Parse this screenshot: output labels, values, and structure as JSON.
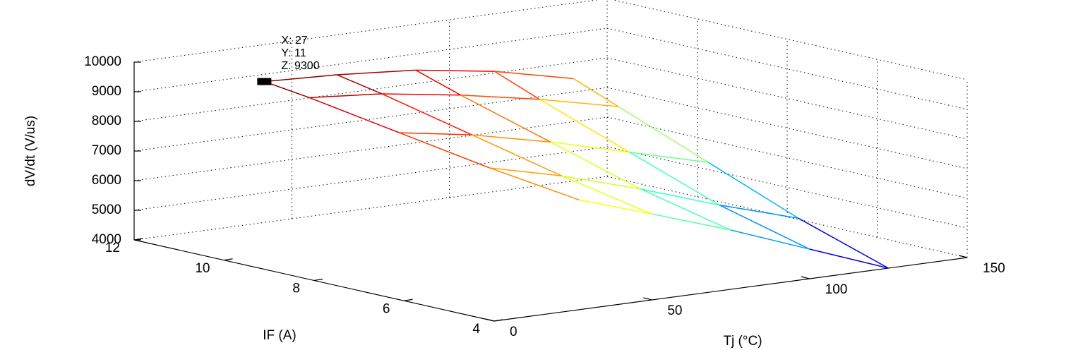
{
  "chart_data": {
    "type": "mesh3d",
    "xlabel": "Tj (°C)",
    "ylabel": "IF (A)",
    "zlabel": "dV/dt (V/us)",
    "x": [
      27,
      50,
      75,
      100,
      125
    ],
    "y": [
      11,
      10,
      8,
      6,
      4
    ],
    "z": [
      [
        9300,
        9200,
        9000,
        8600,
        8000
      ],
      [
        9100,
        8900,
        8500,
        8000,
        7400
      ],
      [
        8600,
        8200,
        7600,
        6900,
        6200
      ],
      [
        8100,
        7500,
        6700,
        5800,
        5000
      ],
      [
        7700,
        6900,
        6000,
        5000,
        4000
      ]
    ],
    "xlim": [
      0,
      150
    ],
    "xticks": [
      0,
      50,
      100,
      150
    ],
    "ylim": [
      4,
      12
    ],
    "yticks": [
      4,
      6,
      8,
      10,
      12
    ],
    "zlim": [
      4000,
      10000
    ],
    "zticks": [
      4000,
      5000,
      6000,
      7000,
      8000,
      9000,
      10000
    ],
    "grid": true,
    "colormap": "jet",
    "datatip": {
      "x": 27,
      "y": 11,
      "z": 9300,
      "labels": [
        "X: 27",
        "Y: 11",
        "Z: 9300"
      ]
    }
  }
}
